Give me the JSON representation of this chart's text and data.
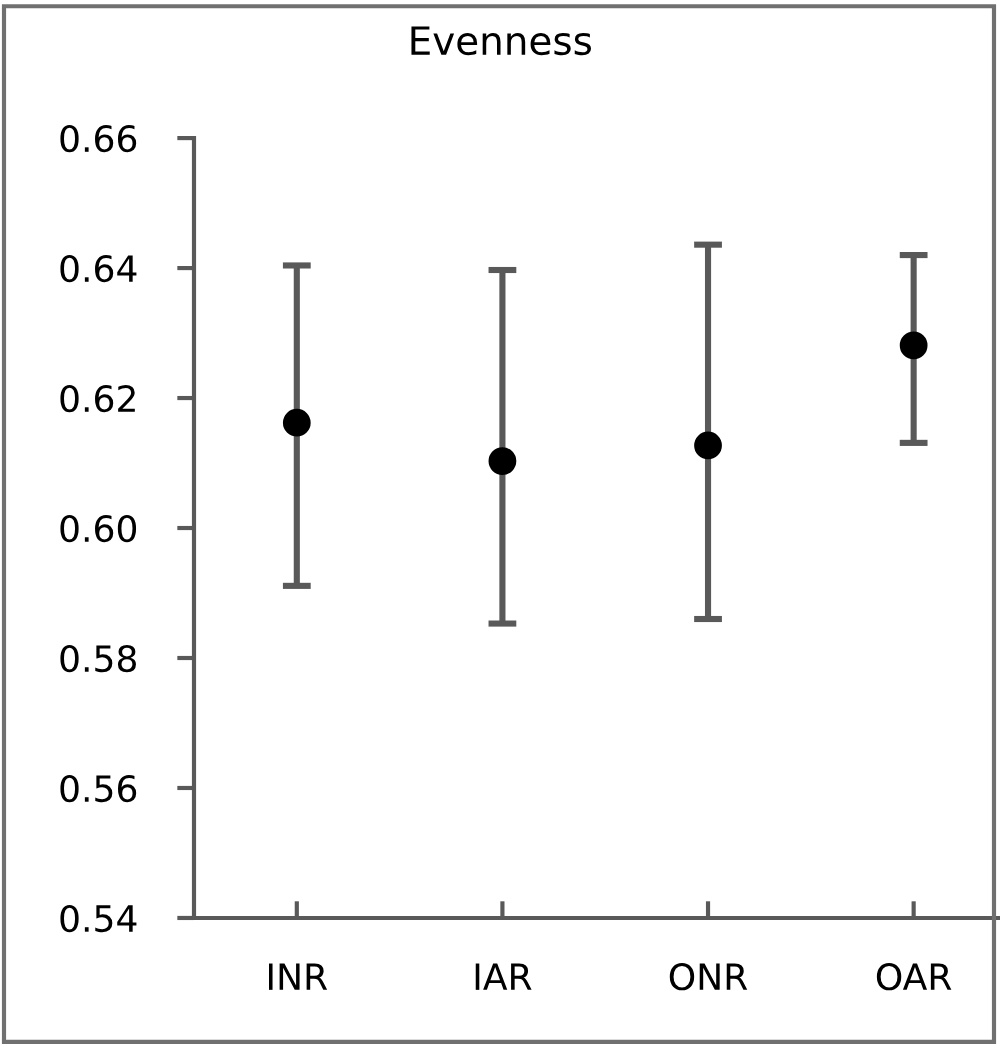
{
  "chart_data": {
    "type": "scatter",
    "title": "Evenness",
    "categories": [
      "INR",
      "IAR",
      "ONR",
      "OAR"
    ],
    "series": [
      {
        "color": "#000000",
        "values": [
          0.6162,
          0.6103,
          0.6127,
          0.6281
        ],
        "errors": [
          [
            0.5911,
            0.6404
          ],
          [
            0.5853,
            0.6397
          ],
          [
            0.586,
            0.6436
          ],
          [
            0.6131,
            0.642
          ]
        ]
      }
    ],
    "ylim": [
      0.54,
      0.66
    ],
    "yticks": [
      {
        "value": 0.54,
        "label": "0.54"
      },
      {
        "value": 0.56,
        "label": "0.56"
      },
      {
        "value": 0.58,
        "label": "0.58"
      },
      {
        "value": 0.6,
        "label": "0.60"
      },
      {
        "value": 0.62,
        "label": "0.62"
      },
      {
        "value": 0.64,
        "label": "0.64"
      },
      {
        "value": 0.66,
        "label": "0.66"
      }
    ],
    "marker": "circle",
    "grid": false,
    "legend": false
  }
}
